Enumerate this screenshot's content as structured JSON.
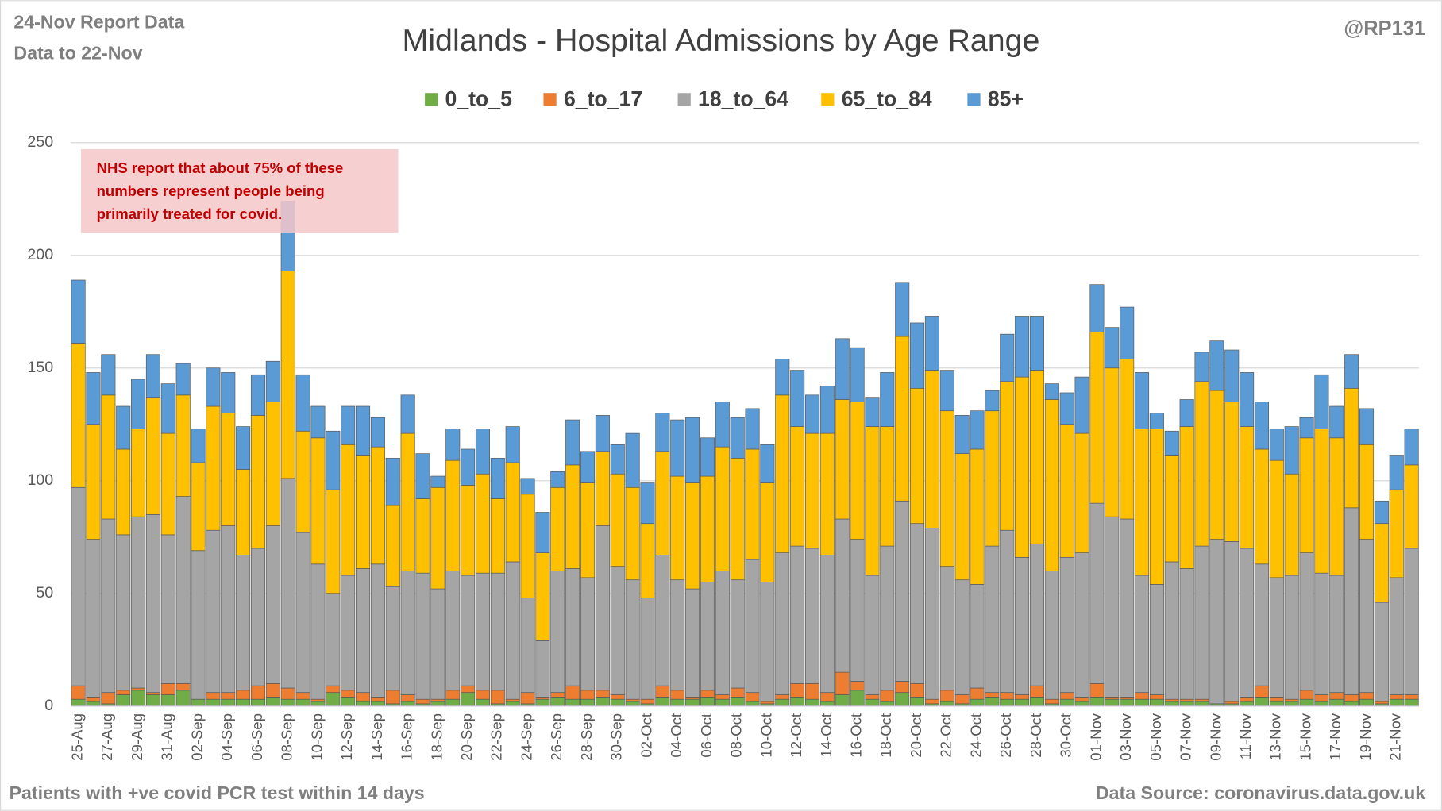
{
  "chart_data": {
    "type": "stacked_bar",
    "title": "Midlands - Hospital Admissions by Age Range",
    "report_lines": [
      "24-Nov Report Data",
      "Data to 22-Nov"
    ],
    "credit": "@RP131",
    "annotation": [
      "NHS report that about 75% of these",
      "numbers represent people being",
      "primarily treated for covid."
    ],
    "footnote": "Patients with  +ve covid PCR test within 14 days",
    "source": "Data Source: coronavirus.data.gov.uk",
    "legend_position": "top",
    "grid": true,
    "ylim": [
      0,
      250
    ],
    "yticks": [
      0,
      50,
      100,
      150,
      200,
      250
    ],
    "categories": [
      "25-Aug",
      null,
      "27-Aug",
      null,
      "29-Aug",
      null,
      "31-Aug",
      null,
      "02-Sep",
      null,
      "04-Sep",
      null,
      "06-Sep",
      null,
      "08-Sep",
      null,
      "10-Sep",
      null,
      "12-Sep",
      null,
      "14-Sep",
      null,
      "16-Sep",
      null,
      "18-Sep",
      null,
      "20-Sep",
      null,
      "22-Sep",
      null,
      "24-Sep",
      null,
      "26-Sep",
      null,
      "28-Sep",
      null,
      "30-Sep",
      null,
      "02-Oct",
      null,
      "04-Oct",
      null,
      "06-Oct",
      null,
      "08-Oct",
      null,
      "10-Oct",
      null,
      "12-Oct",
      null,
      "14-Oct",
      null,
      "16-Oct",
      null,
      "18-Oct",
      null,
      "20-Oct",
      null,
      "22-Oct",
      null,
      "24-Oct",
      null,
      "26-Oct",
      null,
      "28-Oct",
      null,
      "30-Oct",
      null,
      "01-Nov",
      null,
      "03-Nov",
      null,
      "05-Nov",
      null,
      "07-Nov",
      null,
      "09-Nov",
      null,
      "11-Nov",
      null,
      "13-Nov",
      null,
      "15-Nov",
      null,
      "17-Nov",
      null,
      "19-Nov",
      null,
      "21-Nov",
      null
    ],
    "series": [
      {
        "name": "0_to_5",
        "color": "#70ad47",
        "values": [
          3,
          2,
          1,
          5,
          7,
          5,
          5,
          7,
          3,
          3,
          3,
          3,
          3,
          4,
          3,
          3,
          2,
          6,
          4,
          2,
          2,
          1,
          2,
          1,
          2,
          3,
          6,
          3,
          1,
          2,
          1,
          3,
          4,
          3,
          3,
          4,
          3,
          2,
          1,
          4,
          3,
          3,
          4,
          3,
          4,
          2,
          1,
          3,
          4,
          3,
          2,
          5,
          7,
          3,
          2,
          6,
          4,
          1,
          2,
          1,
          3,
          4,
          3,
          3,
          4,
          1,
          3,
          2,
          4,
          3,
          3,
          3,
          3,
          2,
          2,
          2,
          1,
          1,
          2,
          4,
          2,
          2,
          3,
          2,
          3,
          2,
          3,
          1,
          3,
          3
        ]
      },
      {
        "name": "6_to_17",
        "color": "#ed7d31",
        "values": [
          6,
          2,
          5,
          2,
          1,
          1,
          5,
          3,
          0,
          3,
          3,
          4,
          6,
          6,
          5,
          3,
          1,
          3,
          3,
          4,
          2,
          6,
          3,
          2,
          1,
          4,
          3,
          4,
          6,
          1,
          5,
          1,
          2,
          6,
          4,
          3,
          2,
          1,
          2,
          5,
          4,
          1,
          3,
          2,
          4,
          4,
          1,
          2,
          6,
          7,
          4,
          10,
          4,
          2,
          5,
          5,
          6,
          2,
          5,
          4,
          5,
          2,
          3,
          2,
          5,
          2,
          3,
          2,
          6,
          1,
          1,
          3,
          2,
          1,
          1,
          1,
          0,
          1,
          2,
          5,
          2,
          1,
          4,
          3,
          3,
          3,
          3,
          1,
          2,
          2
        ]
      },
      {
        "name": "18_to_64",
        "color": "#a5a5a5",
        "values": [
          88,
          70,
          77,
          69,
          76,
          79,
          66,
          83,
          66,
          72,
          74,
          60,
          61,
          70,
          93,
          71,
          60,
          41,
          51,
          55,
          59,
          46,
          55,
          56,
          49,
          53,
          49,
          52,
          52,
          61,
          42,
          25,
          54,
          52,
          50,
          73,
          57,
          53,
          45,
          58,
          49,
          48,
          48,
          55,
          48,
          59,
          53,
          63,
          61,
          60,
          61,
          68,
          63,
          53,
          64,
          80,
          71,
          76,
          55,
          51,
          46,
          65,
          72,
          61,
          63,
          57,
          60,
          64,
          80,
          80,
          79,
          52,
          49,
          61,
          58,
          68,
          73,
          71,
          66,
          54,
          53,
          55,
          61,
          54,
          52,
          83,
          68,
          44,
          52,
          65
        ]
      },
      {
        "name": "65_to_84",
        "color": "#ffc000",
        "values": [
          64,
          51,
          55,
          38,
          39,
          52,
          45,
          45,
          39,
          55,
          50,
          38,
          59,
          55,
          92,
          45,
          56,
          46,
          58,
          50,
          52,
          36,
          61,
          33,
          45,
          49,
          40,
          44,
          33,
          44,
          46,
          39,
          37,
          46,
          42,
          33,
          41,
          41,
          33,
          46,
          46,
          47,
          47,
          55,
          54,
          49,
          44,
          70,
          53,
          51,
          54,
          53,
          61,
          66,
          53,
          73,
          60,
          70,
          69,
          56,
          60,
          60,
          66,
          80,
          77,
          76,
          59,
          53,
          76,
          66,
          71,
          65,
          69,
          47,
          63,
          73,
          66,
          62,
          54,
          51,
          52,
          45,
          51,
          64,
          61,
          53,
          42,
          35,
          39,
          37
        ]
      },
      {
        "name": "85+",
        "color": "#5b9bd5",
        "values": [
          28,
          23,
          18,
          19,
          22,
          19,
          22,
          14,
          15,
          17,
          18,
          19,
          18,
          18,
          31,
          25,
          14,
          26,
          17,
          22,
          13,
          21,
          17,
          20,
          5,
          14,
          16,
          20,
          18,
          16,
          7,
          18,
          7,
          20,
          14,
          16,
          13,
          24,
          18,
          17,
          25,
          29,
          17,
          20,
          18,
          18,
          17,
          16,
          25,
          17,
          21,
          27,
          24,
          13,
          24,
          24,
          29,
          24,
          18,
          17,
          17,
          9,
          21,
          27,
          24,
          7,
          14,
          25,
          21,
          18,
          23,
          25,
          7,
          11,
          12,
          13,
          22,
          23,
          24,
          21,
          14,
          21,
          9,
          24,
          14,
          15,
          16,
          10,
          15,
          16
        ]
      }
    ]
  }
}
